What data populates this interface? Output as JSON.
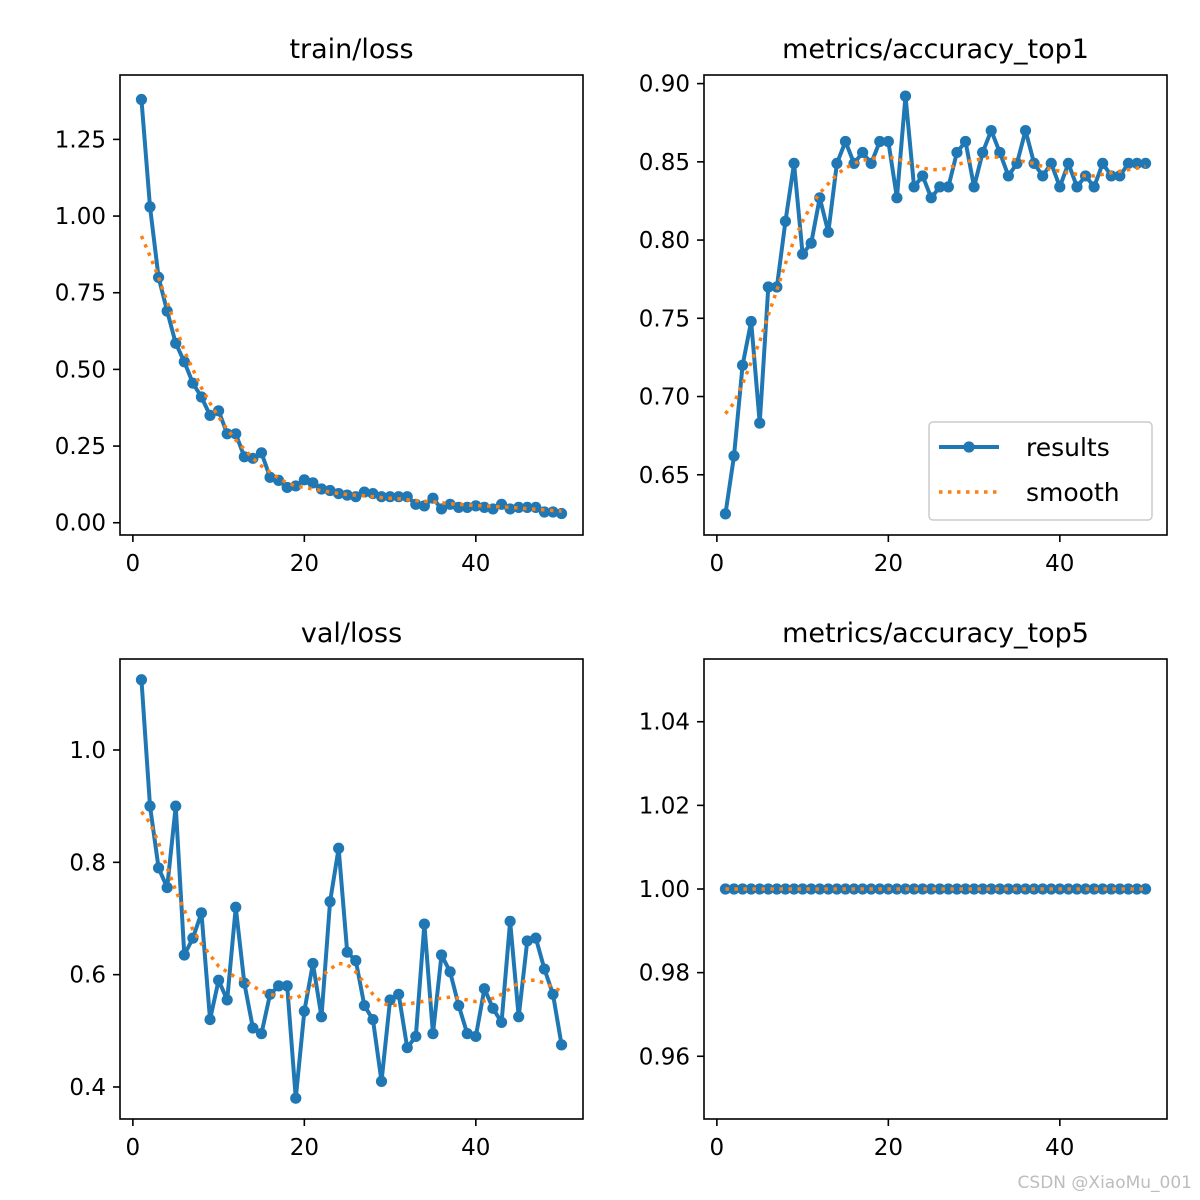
{
  "colors": {
    "results": "#1f77b4",
    "smooth": "#ff7f0e",
    "axes": "#000000"
  },
  "watermark": "CSDN @XiaoMu_001",
  "legend": {
    "items": [
      "results",
      "smooth"
    ],
    "placement": "lower-right"
  },
  "chart_data": [
    {
      "id": "train-loss",
      "type": "line",
      "title": "train/loss",
      "xlim": [
        -1.5,
        52.5
      ],
      "ylim": [
        -0.04,
        1.46
      ],
      "xticks": [
        0,
        20,
        40
      ],
      "yticks": [
        0.0,
        0.25,
        0.5,
        0.75,
        1.0,
        1.25
      ],
      "ytick_labels": [
        "0.00",
        "0.25",
        "0.50",
        "0.75",
        "1.00",
        "1.25"
      ],
      "legend": false,
      "series": [
        {
          "name": "results",
          "style": "line-marker",
          "x": [
            1,
            2,
            3,
            4,
            5,
            6,
            7,
            8,
            9,
            10,
            11,
            12,
            13,
            14,
            15,
            16,
            17,
            18,
            19,
            20,
            21,
            22,
            23,
            24,
            25,
            26,
            27,
            28,
            29,
            30,
            31,
            32,
            33,
            34,
            35,
            36,
            37,
            38,
            39,
            40,
            41,
            42,
            43,
            44,
            45,
            46,
            47,
            48,
            49,
            50
          ],
          "values": [
            1.38,
            1.03,
            0.8,
            0.69,
            0.585,
            0.525,
            0.455,
            0.41,
            0.35,
            0.365,
            0.29,
            0.29,
            0.215,
            0.21,
            0.228,
            0.148,
            0.138,
            0.115,
            0.12,
            0.14,
            0.13,
            0.11,
            0.105,
            0.095,
            0.09,
            0.085,
            0.1,
            0.095,
            0.085,
            0.085,
            0.085,
            0.085,
            0.06,
            0.055,
            0.08,
            0.045,
            0.06,
            0.05,
            0.05,
            0.055,
            0.05,
            0.045,
            0.06,
            0.045,
            0.05,
            0.05,
            0.05,
            0.035,
            0.035,
            0.03
          ]
        },
        {
          "name": "smooth",
          "style": "dotted",
          "x": [
            1,
            2,
            3,
            4,
            5,
            6,
            7,
            8,
            9,
            10,
            11,
            12,
            13,
            14,
            15,
            16,
            17,
            18,
            19,
            20,
            21,
            22,
            23,
            24,
            25,
            26,
            27,
            28,
            29,
            30,
            31,
            32,
            33,
            34,
            35,
            36,
            37,
            38,
            39,
            40,
            41,
            42,
            43,
            44,
            45,
            46,
            47,
            48,
            49,
            50
          ],
          "values": [
            0.935,
            0.87,
            0.8,
            0.72,
            0.64,
            0.56,
            0.5,
            0.44,
            0.39,
            0.345,
            0.305,
            0.27,
            0.24,
            0.21,
            0.185,
            0.165,
            0.145,
            0.13,
            0.12,
            0.115,
            0.11,
            0.105,
            0.1,
            0.095,
            0.092,
            0.09,
            0.088,
            0.085,
            0.082,
            0.08,
            0.078,
            0.075,
            0.072,
            0.07,
            0.068,
            0.065,
            0.062,
            0.06,
            0.058,
            0.056,
            0.055,
            0.053,
            0.052,
            0.05,
            0.048,
            0.046,
            0.044,
            0.042,
            0.04,
            0.038
          ]
        }
      ]
    },
    {
      "id": "accuracy-top1",
      "type": "line",
      "title": "metrics/accuracy_top1",
      "xlim": [
        -1.5,
        52.5
      ],
      "ylim": [
        0.6115,
        0.9055
      ],
      "xticks": [
        0,
        20,
        40
      ],
      "yticks": [
        0.65,
        0.7,
        0.75,
        0.8,
        0.85,
        0.9
      ],
      "ytick_labels": [
        "0.65",
        "0.70",
        "0.75",
        "0.80",
        "0.85",
        "0.90"
      ],
      "legend": true,
      "series": [
        {
          "name": "results",
          "style": "line-marker",
          "x": [
            1,
            2,
            3,
            4,
            5,
            6,
            7,
            8,
            9,
            10,
            11,
            12,
            13,
            14,
            15,
            16,
            17,
            18,
            19,
            20,
            21,
            22,
            23,
            24,
            25,
            26,
            27,
            28,
            29,
            30,
            31,
            32,
            33,
            34,
            35,
            36,
            37,
            38,
            39,
            40,
            41,
            42,
            43,
            44,
            45,
            46,
            47,
            48,
            49,
            50
          ],
          "values": [
            0.625,
            0.662,
            0.72,
            0.748,
            0.683,
            0.77,
            0.77,
            0.812,
            0.849,
            0.791,
            0.798,
            0.827,
            0.805,
            0.849,
            0.863,
            0.849,
            0.856,
            0.849,
            0.863,
            0.863,
            0.827,
            0.892,
            0.834,
            0.841,
            0.827,
            0.834,
            0.834,
            0.856,
            0.863,
            0.834,
            0.856,
            0.87,
            0.856,
            0.841,
            0.849,
            0.87,
            0.849,
            0.841,
            0.849,
            0.834,
            0.849,
            0.834,
            0.841,
            0.834,
            0.849,
            0.841,
            0.841,
            0.849,
            0.849,
            0.849
          ]
        },
        {
          "name": "smooth",
          "style": "dotted",
          "x": [
            1,
            2,
            3,
            4,
            5,
            6,
            7,
            8,
            9,
            10,
            11,
            12,
            13,
            14,
            15,
            16,
            17,
            18,
            19,
            20,
            21,
            22,
            23,
            24,
            25,
            26,
            27,
            28,
            29,
            30,
            31,
            32,
            33,
            34,
            35,
            36,
            37,
            38,
            39,
            40,
            41,
            42,
            43,
            44,
            45,
            46,
            47,
            48,
            49,
            50
          ],
          "values": [
            0.689,
            0.696,
            0.708,
            0.722,
            0.735,
            0.752,
            0.768,
            0.785,
            0.8,
            0.812,
            0.822,
            0.83,
            0.836,
            0.842,
            0.846,
            0.849,
            0.851,
            0.852,
            0.853,
            0.853,
            0.852,
            0.85,
            0.848,
            0.846,
            0.845,
            0.845,
            0.846,
            0.848,
            0.85,
            0.851,
            0.852,
            0.853,
            0.853,
            0.852,
            0.851,
            0.85,
            0.849,
            0.847,
            0.845,
            0.844,
            0.843,
            0.842,
            0.841,
            0.841,
            0.842,
            0.843,
            0.844,
            0.845,
            0.846,
            0.847
          ]
        }
      ]
    },
    {
      "id": "val-loss",
      "type": "line",
      "title": "val/loss",
      "xlim": [
        -1.5,
        52.5
      ],
      "ylim": [
        0.343,
        1.162
      ],
      "xticks": [
        0,
        20,
        40
      ],
      "yticks": [
        0.4,
        0.6,
        0.8,
        1.0
      ],
      "ytick_labels": [
        "0.4",
        "0.6",
        "0.8",
        "1.0"
      ],
      "legend": false,
      "series": [
        {
          "name": "results",
          "style": "line-marker",
          "x": [
            1,
            2,
            3,
            4,
            5,
            6,
            7,
            8,
            9,
            10,
            11,
            12,
            13,
            14,
            15,
            16,
            17,
            18,
            19,
            20,
            21,
            22,
            23,
            24,
            25,
            26,
            27,
            28,
            29,
            30,
            31,
            32,
            33,
            34,
            35,
            36,
            37,
            38,
            39,
            40,
            41,
            42,
            43,
            44,
            45,
            46,
            47,
            48,
            49,
            50
          ],
          "values": [
            1.125,
            0.9,
            0.79,
            0.755,
            0.9,
            0.635,
            0.665,
            0.71,
            0.52,
            0.59,
            0.555,
            0.72,
            0.585,
            0.505,
            0.495,
            0.565,
            0.58,
            0.58,
            0.38,
            0.535,
            0.62,
            0.525,
            0.73,
            0.825,
            0.64,
            0.625,
            0.545,
            0.52,
            0.41,
            0.555,
            0.565,
            0.47,
            0.49,
            0.69,
            0.495,
            0.635,
            0.605,
            0.545,
            0.495,
            0.49,
            0.575,
            0.54,
            0.515,
            0.695,
            0.525,
            0.66,
            0.665,
            0.61,
            0.565,
            0.475
          ]
        },
        {
          "name": "smooth",
          "style": "dotted",
          "x": [
            1,
            2,
            3,
            4,
            5,
            6,
            7,
            8,
            9,
            10,
            11,
            12,
            13,
            14,
            15,
            16,
            17,
            18,
            19,
            20,
            21,
            22,
            23,
            24,
            25,
            26,
            27,
            28,
            29,
            30,
            31,
            32,
            33,
            34,
            35,
            36,
            37,
            38,
            39,
            40,
            41,
            42,
            43,
            44,
            45,
            46,
            47,
            48,
            49,
            50
          ],
          "values": [
            0.89,
            0.87,
            0.835,
            0.79,
            0.75,
            0.715,
            0.68,
            0.655,
            0.635,
            0.615,
            0.605,
            0.595,
            0.59,
            0.58,
            0.57,
            0.565,
            0.562,
            0.56,
            0.558,
            0.566,
            0.58,
            0.597,
            0.61,
            0.62,
            0.618,
            0.605,
            0.585,
            0.565,
            0.55,
            0.545,
            0.546,
            0.548,
            0.55,
            0.553,
            0.556,
            0.558,
            0.56,
            0.558,
            0.555,
            0.552,
            0.553,
            0.558,
            0.565,
            0.575,
            0.585,
            0.59,
            0.59,
            0.585,
            0.578,
            0.57
          ]
        }
      ]
    },
    {
      "id": "accuracy-top5",
      "type": "line",
      "title": "metrics/accuracy_top5",
      "xlim": [
        -1.5,
        52.5
      ],
      "ylim": [
        0.945,
        1.055
      ],
      "xticks": [
        0,
        20,
        40
      ],
      "yticks": [
        0.96,
        0.98,
        1.0,
        1.02,
        1.04
      ],
      "ytick_labels": [
        "0.96",
        "0.98",
        "1.00",
        "1.02",
        "1.04"
      ],
      "legend": false,
      "series": [
        {
          "name": "results",
          "style": "line-marker",
          "x": [
            1,
            2,
            3,
            4,
            5,
            6,
            7,
            8,
            9,
            10,
            11,
            12,
            13,
            14,
            15,
            16,
            17,
            18,
            19,
            20,
            21,
            22,
            23,
            24,
            25,
            26,
            27,
            28,
            29,
            30,
            31,
            32,
            33,
            34,
            35,
            36,
            37,
            38,
            39,
            40,
            41,
            42,
            43,
            44,
            45,
            46,
            47,
            48,
            49,
            50
          ],
          "values": [
            1,
            1,
            1,
            1,
            1,
            1,
            1,
            1,
            1,
            1,
            1,
            1,
            1,
            1,
            1,
            1,
            1,
            1,
            1,
            1,
            1,
            1,
            1,
            1,
            1,
            1,
            1,
            1,
            1,
            1,
            1,
            1,
            1,
            1,
            1,
            1,
            1,
            1,
            1,
            1,
            1,
            1,
            1,
            1,
            1,
            1,
            1,
            1,
            1,
            1
          ]
        },
        {
          "name": "smooth",
          "style": "dotted",
          "x": [
            1,
            2,
            3,
            4,
            5,
            6,
            7,
            8,
            9,
            10,
            11,
            12,
            13,
            14,
            15,
            16,
            17,
            18,
            19,
            20,
            21,
            22,
            23,
            24,
            25,
            26,
            27,
            28,
            29,
            30,
            31,
            32,
            33,
            34,
            35,
            36,
            37,
            38,
            39,
            40,
            41,
            42,
            43,
            44,
            45,
            46,
            47,
            48,
            49,
            50
          ],
          "values": [
            1,
            1,
            1,
            1,
            1,
            1,
            1,
            1,
            1,
            1,
            1,
            1,
            1,
            1,
            1,
            1,
            1,
            1,
            1,
            1,
            1,
            1,
            1,
            1,
            1,
            1,
            1,
            1,
            1,
            1,
            1,
            1,
            1,
            1,
            1,
            1,
            1,
            1,
            1,
            1,
            1,
            1,
            1,
            1,
            1,
            1,
            1,
            1,
            1,
            1
          ]
        }
      ]
    }
  ]
}
